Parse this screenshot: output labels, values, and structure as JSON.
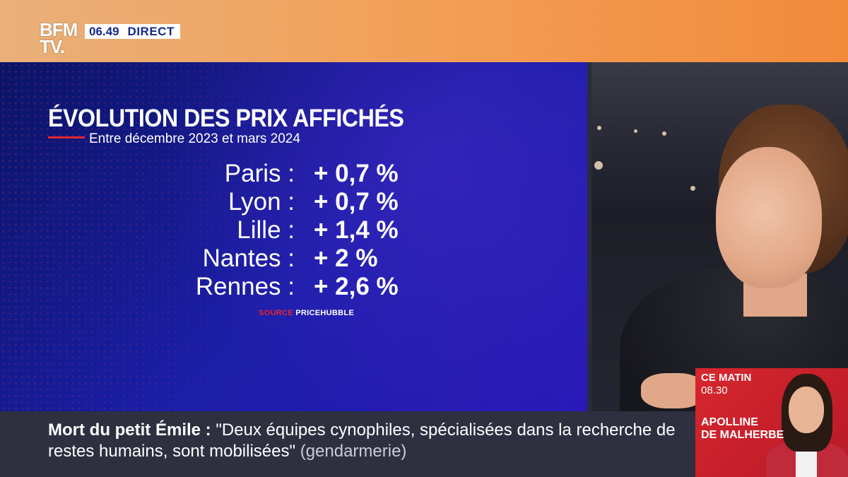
{
  "channel": {
    "logo_line1": "BFM",
    "logo_line2": "TV.",
    "time": "06.49",
    "status": "DIRECT"
  },
  "infographic": {
    "title": "ÉVOLUTION DES PRIX AFFICHÉS",
    "subtitle": "Entre décembre 2023 et mars 2024",
    "rows": [
      {
        "city": "Paris :",
        "value": "+ 0,7 %"
      },
      {
        "city": "Lyon :",
        "value": "+ 0,7 %"
      },
      {
        "city": "Lille :",
        "value": "+ 1,4 %"
      },
      {
        "city": "Nantes :",
        "value": "+ 2 %"
      },
      {
        "city": "Rennes :",
        "value": "+ 2,6 %"
      }
    ],
    "source_label": "SOURCE",
    "source_name": "PRICEHUBBLE"
  },
  "ticker": {
    "topic": "Mort du petit Émile :",
    "quote": "\"Deux équipes cynophiles, spécialisées dans la recherche de restes humains, sont mobilisées\"",
    "attribution": "(gendarmerie)"
  },
  "next_show": {
    "label": "CE MATIN",
    "time": "08.30",
    "host_line1": "APOLLINE",
    "host_line2": "DE MALHERBE"
  },
  "colors": {
    "banner_orange": "#f2a15a",
    "panel_blue": "#1a1ea8",
    "accent_red": "#e2262e",
    "ticker_bg": "#2e3040"
  }
}
